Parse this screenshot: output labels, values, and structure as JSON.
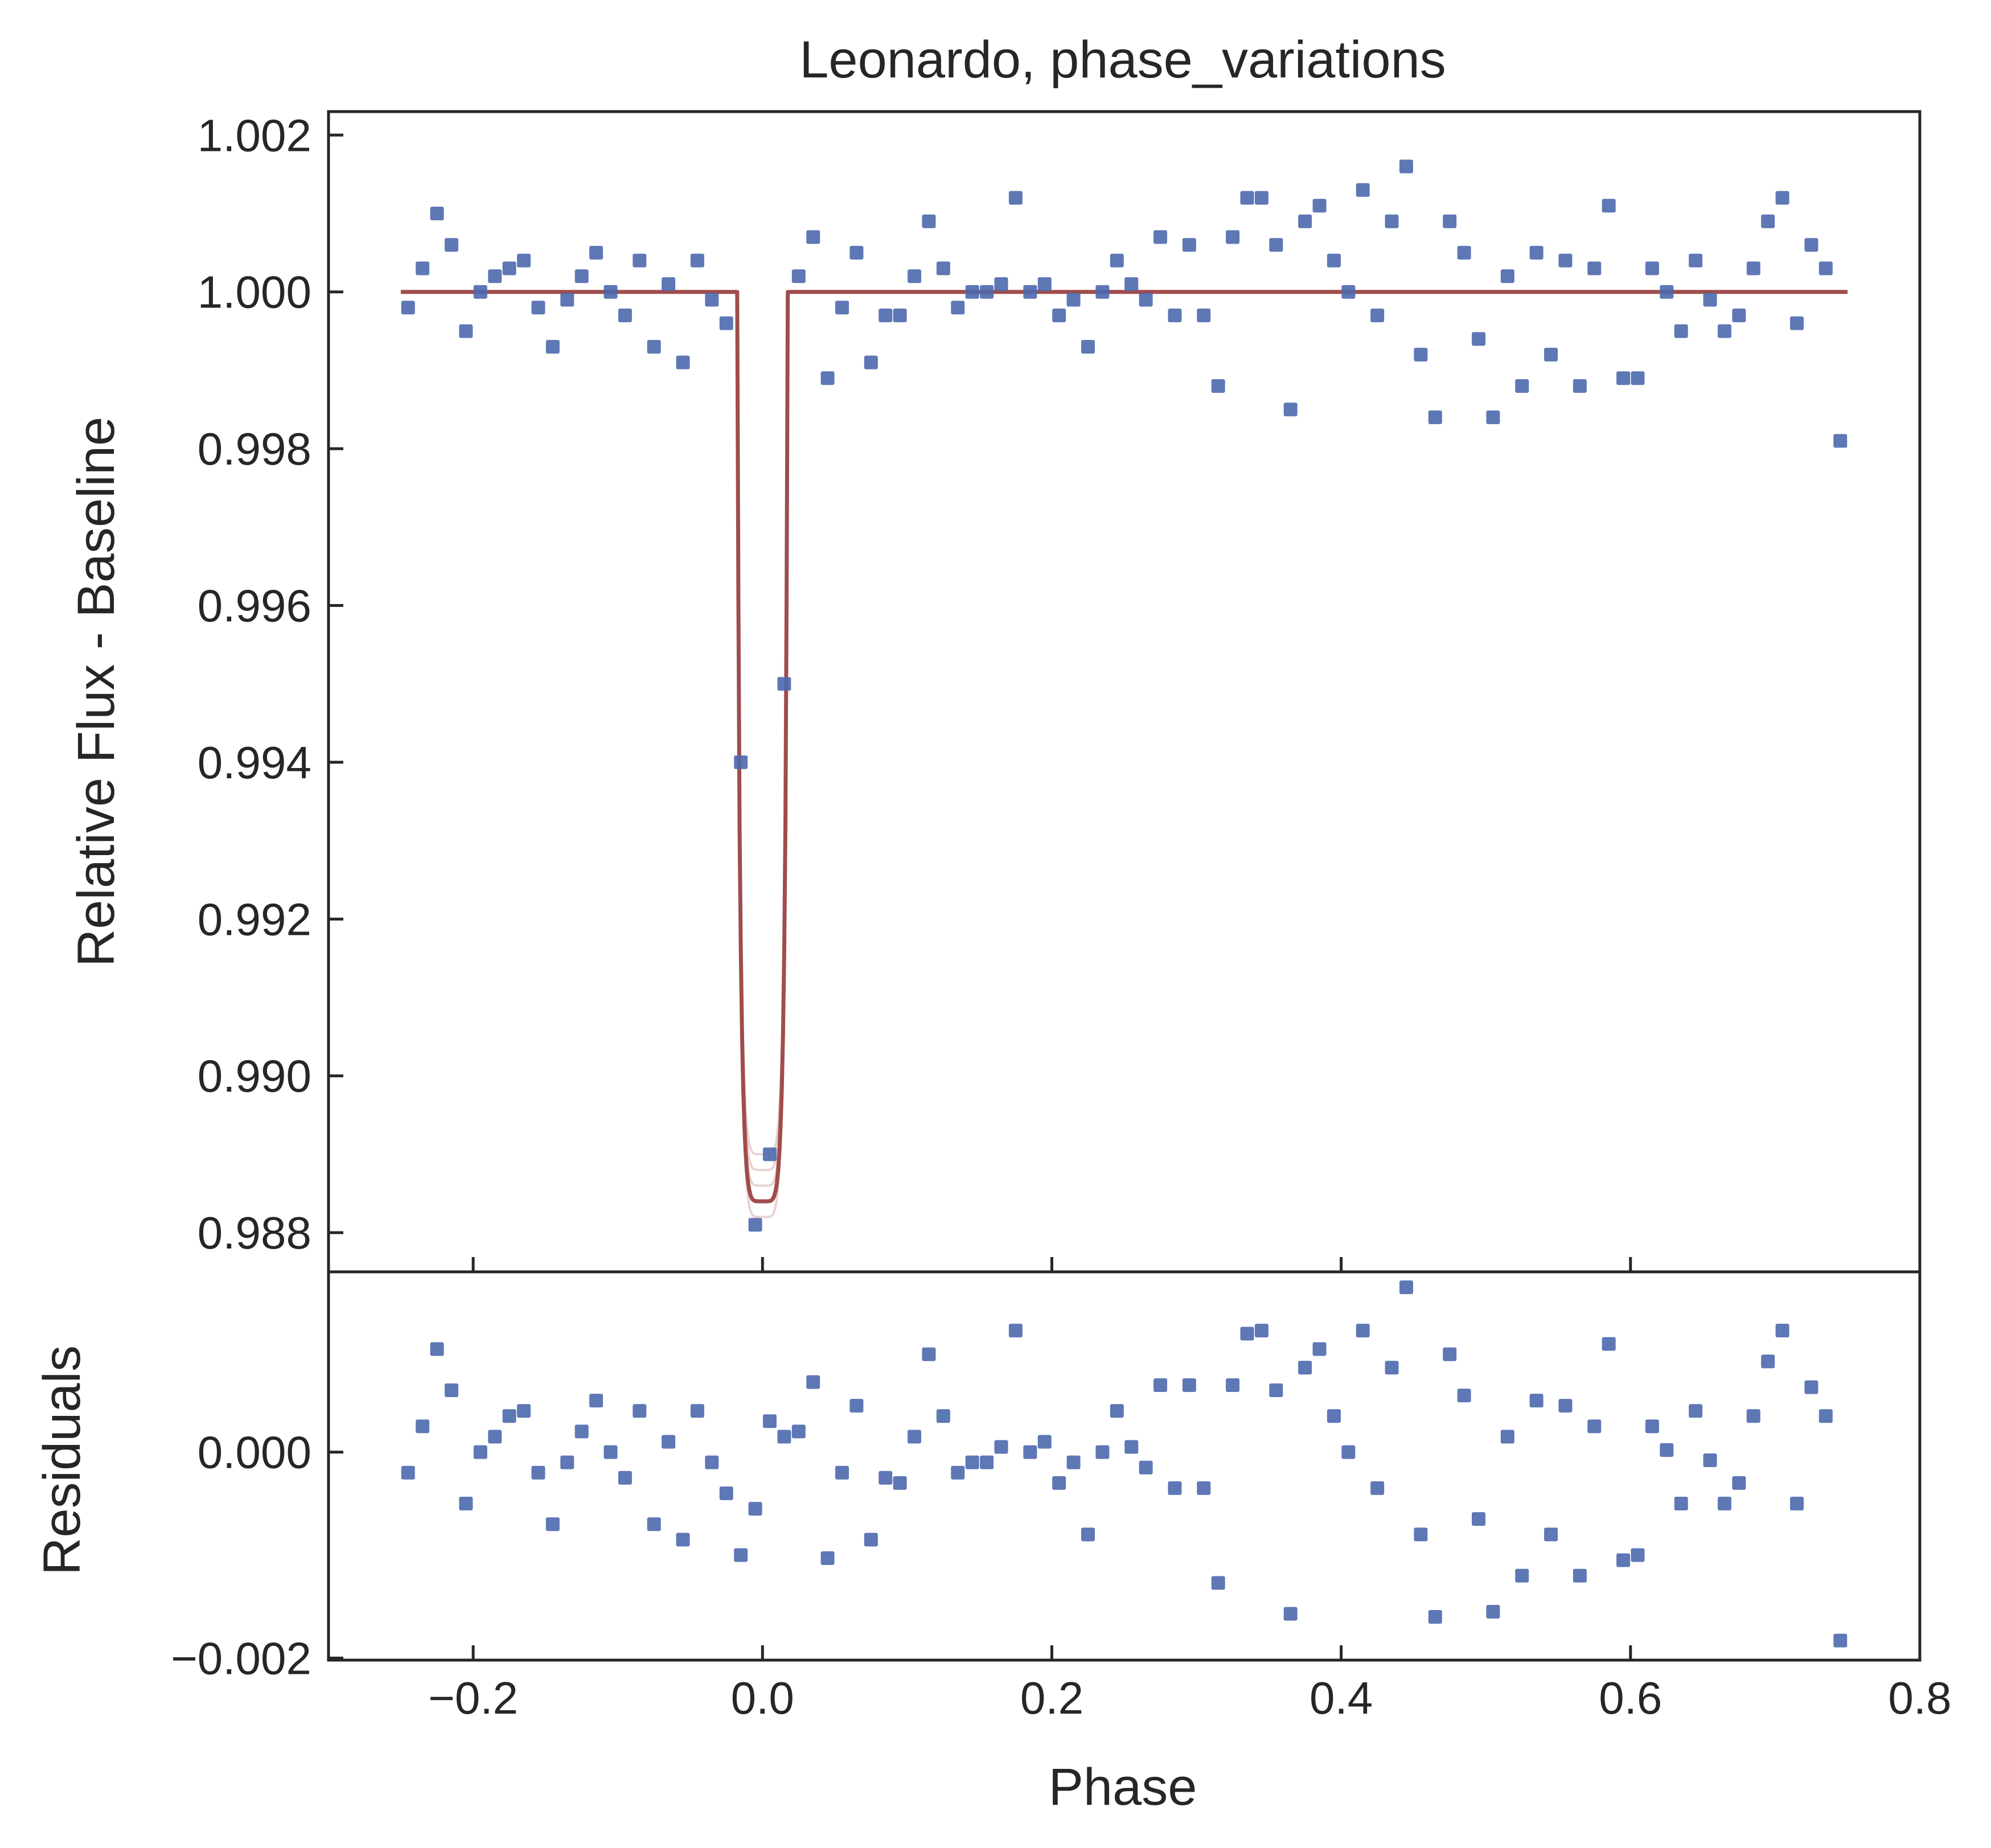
{
  "chart_data": {
    "type": "scatter",
    "title": "Leonardo, phase_variations",
    "xlabel": "Phase",
    "xlim": [
      -0.3,
      0.8
    ],
    "x_ticks": [
      "−0.2",
      "0.0",
      "0.2",
      "0.4",
      "0.6",
      "0.8"
    ],
    "x_tick_values": [
      -0.2,
      0.0,
      0.2,
      0.4,
      0.6,
      0.8
    ],
    "grid": false,
    "panels": [
      {
        "id": "flux",
        "ylabel": "Relative Flux - Baseline",
        "ylim": [
          0.9875,
          1.0023
        ],
        "y_ticks": [
          "0.988",
          "0.990",
          "0.992",
          "0.994",
          "0.996",
          "0.998",
          "1.000",
          "1.002"
        ],
        "y_tick_values": [
          0.988,
          0.99,
          0.992,
          0.994,
          0.996,
          0.998,
          1.0,
          1.002
        ],
        "series": [
          {
            "kind": "points",
            "color": "#4c68ad",
            "x": [
              -0.245,
              -0.235,
              -0.225,
              -0.215,
              -0.205,
              -0.195,
              -0.185,
              -0.175,
              -0.165,
              -0.155,
              -0.145,
              -0.135,
              -0.125,
              -0.115,
              -0.105,
              -0.095,
              -0.085,
              -0.075,
              -0.065,
              -0.055,
              -0.045,
              -0.035,
              -0.025,
              -0.015,
              -0.005,
              0.005,
              0.015,
              0.025,
              0.035,
              0.045,
              0.055,
              0.065,
              0.075,
              0.085,
              0.095,
              0.105,
              0.115,
              0.125,
              0.135,
              0.145,
              0.155,
              0.165,
              0.175,
              0.185,
              0.195,
              0.205,
              0.215,
              0.225,
              0.235,
              0.245,
              0.255,
              0.265,
              0.275,
              0.285,
              0.295,
              0.305,
              0.315,
              0.325,
              0.335,
              0.345,
              0.355,
              0.365,
              0.375,
              0.385,
              0.395,
              0.405,
              0.415,
              0.425,
              0.435,
              0.445,
              0.455,
              0.465,
              0.475,
              0.485,
              0.495,
              0.505,
              0.515,
              0.525,
              0.535,
              0.545,
              0.555,
              0.565,
              0.575,
              0.585,
              0.595,
              0.605,
              0.615,
              0.625,
              0.635,
              0.645,
              0.655,
              0.665,
              0.675,
              0.685,
              0.695,
              0.705,
              0.715,
              0.725,
              0.735,
              0.745
            ],
            "y": [
              0.9998,
              1.0003,
              1.001,
              1.0006,
              0.9995,
              1.0,
              1.0002,
              1.0003,
              1.0004,
              0.9998,
              0.9993,
              0.9999,
              1.0002,
              1.0005,
              1.0,
              0.9997,
              1.0004,
              0.9993,
              1.0001,
              0.9991,
              1.0004,
              0.9999,
              0.9996,
              0.994,
              0.9881,
              0.989,
              0.995,
              1.0002,
              1.0007,
              0.9989,
              0.9998,
              1.0005,
              0.9991,
              0.9997,
              0.9997,
              1.0002,
              1.0009,
              1.0003,
              0.9998,
              1.0,
              1.0,
              1.0001,
              1.0012,
              1.0,
              1.0001,
              0.9997,
              0.9999,
              0.9993,
              1.0,
              1.0004,
              1.0001,
              0.9999,
              1.0007,
              0.9997,
              1.0006,
              0.9997,
              0.9988,
              1.0007,
              1.0012,
              1.0012,
              1.0006,
              0.9985,
              1.0009,
              1.0011,
              1.0004,
              1.0,
              1.0013,
              0.9997,
              1.0009,
              1.0016,
              0.9992,
              0.9984,
              1.0009,
              1.0005,
              0.9994,
              0.9984,
              1.0002,
              0.9988,
              1.0005,
              0.9992,
              1.0004,
              0.9988,
              1.0003,
              1.0011,
              0.9989,
              0.9989,
              1.0003,
              1.0,
              0.9995,
              1.0004,
              0.9999,
              0.9995,
              0.9997,
              1.0003,
              1.0009,
              1.0012,
              0.9996,
              1.0006,
              1.0003,
              0.9981
            ]
          },
          {
            "kind": "model",
            "color": "#a04c4c",
            "x_range": [
              -0.25,
              0.75
            ],
            "baseline": 1.0,
            "transit_center": 0.0,
            "transit_half_width": 0.017,
            "transit_min": 0.9884,
            "transit_min_samples": [
              0.9882,
              0.9884,
              0.9886,
              0.9888,
              0.989
            ]
          }
        ]
      },
      {
        "id": "residuals",
        "ylabel": "Residuals",
        "ylim": [
          -0.00202,
          0.00175
        ],
        "y_ticks": [
          "−0.002",
          "0.000"
        ],
        "y_tick_values": [
          -0.002,
          0.0
        ],
        "series": [
          {
            "kind": "points",
            "color": "#4c68ad",
            "x": [
              -0.245,
              -0.235,
              -0.225,
              -0.215,
              -0.205,
              -0.195,
              -0.185,
              -0.175,
              -0.165,
              -0.155,
              -0.145,
              -0.135,
              -0.125,
              -0.115,
              -0.105,
              -0.095,
              -0.085,
              -0.075,
              -0.065,
              -0.055,
              -0.045,
              -0.035,
              -0.025,
              -0.015,
              -0.005,
              0.005,
              0.015,
              0.025,
              0.035,
              0.045,
              0.055,
              0.065,
              0.075,
              0.085,
              0.095,
              0.105,
              0.115,
              0.125,
              0.135,
              0.145,
              0.155,
              0.165,
              0.175,
              0.185,
              0.195,
              0.205,
              0.215,
              0.225,
              0.235,
              0.245,
              0.255,
              0.265,
              0.275,
              0.285,
              0.295,
              0.305,
              0.315,
              0.325,
              0.335,
              0.345,
              0.355,
              0.365,
              0.375,
              0.385,
              0.395,
              0.405,
              0.415,
              0.425,
              0.435,
              0.445,
              0.455,
              0.465,
              0.475,
              0.485,
              0.495,
              0.505,
              0.515,
              0.525,
              0.535,
              0.545,
              0.555,
              0.565,
              0.575,
              0.585,
              0.595,
              0.605,
              0.615,
              0.625,
              0.635,
              0.645,
              0.655,
              0.665,
              0.675,
              0.685,
              0.695,
              0.705,
              0.715,
              0.725,
              0.735,
              0.745
            ],
            "y": [
              -0.0002,
              0.00025,
              0.001,
              0.0006,
              -0.0005,
              0.0,
              0.00015,
              0.00035,
              0.0004,
              -0.0002,
              -0.0007,
              -0.0001,
              0.0002,
              0.0005,
              0.0,
              -0.00025,
              0.0004,
              -0.0007,
              0.0001,
              -0.00085,
              0.0004,
              -0.0001,
              -0.0004,
              -0.001,
              -0.00055,
              0.0003,
              0.00015,
              0.0002,
              0.00068,
              -0.00103,
              -0.0002,
              0.00045,
              -0.00085,
              -0.00025,
              -0.0003,
              0.00015,
              0.00095,
              0.00035,
              -0.0002,
              -0.0001,
              -0.0001,
              5e-05,
              0.00118,
              0.0,
              0.0001,
              -0.0003,
              -0.0001,
              -0.0008,
              0.0,
              0.0004,
              5e-05,
              -0.00015,
              0.00065,
              -0.00035,
              0.00065,
              -0.00035,
              -0.00127,
              0.00065,
              0.00115,
              0.00118,
              0.0006,
              -0.00157,
              0.00082,
              0.001,
              0.00035,
              0.0,
              0.00118,
              -0.00035,
              0.00082,
              0.0016,
              -0.0008,
              -0.0016,
              0.00095,
              0.00055,
              -0.00065,
              -0.00155,
              0.00015,
              -0.0012,
              0.0005,
              -0.0008,
              0.00045,
              -0.0012,
              0.00025,
              0.00105,
              -0.00105,
              -0.001,
              0.00025,
              2e-05,
              -0.0005,
              0.0004,
              -8e-05,
              -0.0005,
              -0.0003,
              0.00035,
              0.00088,
              0.00118,
              -0.0005,
              0.00063,
              0.00035,
              -0.00183
            ]
          }
        ]
      }
    ]
  }
}
